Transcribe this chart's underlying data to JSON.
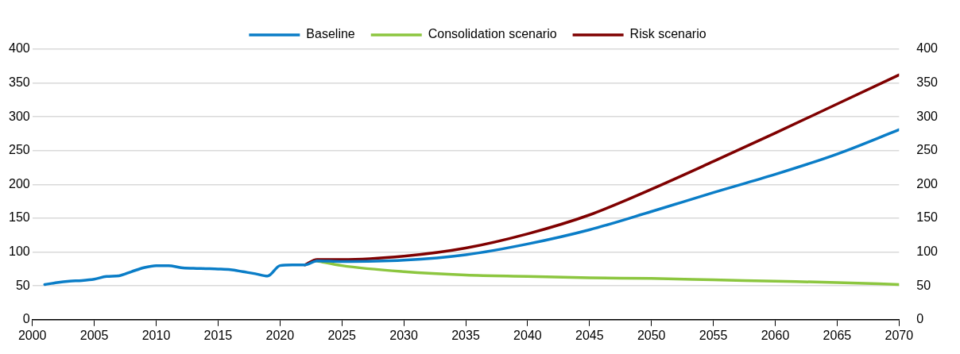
{
  "chart_data": {
    "type": "line",
    "xlim": [
      2000,
      2070
    ],
    "xticks": [
      2000,
      2005,
      2010,
      2015,
      2020,
      2025,
      2030,
      2035,
      2040,
      2045,
      2050,
      2055,
      2060,
      2065,
      2070
    ],
    "ylim": [
      0,
      400
    ],
    "yticks": [
      0,
      50,
      100,
      150,
      200,
      250,
      300,
      350,
      400
    ],
    "y2lim": [
      0,
      400
    ],
    "y2ticks": [
      0,
      50,
      100,
      150,
      200,
      250,
      300,
      350,
      400
    ],
    "grid": "y",
    "legend": "top",
    "marker": "none",
    "line_style": "solid",
    "series": [
      {
        "name": "Baseline",
        "color": "#0a7dc7",
        "x": [
          2001,
          2002,
          2003,
          2004,
          2005,
          2006,
          2007,
          2008,
          2009,
          2010,
          2011,
          2012,
          2013,
          2014,
          2015,
          2016,
          2017,
          2018,
          2019,
          2020,
          2021,
          2022,
          2023,
          2025,
          2030,
          2035,
          2040,
          2045,
          2050,
          2055,
          2060,
          2065,
          2070
        ],
        "values": [
          52,
          55,
          57,
          58,
          60,
          64,
          65,
          71,
          77,
          80,
          80,
          77,
          76,
          75.5,
          75,
          74,
          71,
          68,
          64.5,
          80,
          81,
          81,
          87,
          86,
          88,
          96,
          112,
          133,
          160,
          188,
          215,
          245,
          281
        ]
      },
      {
        "name": "Consolidation scenario",
        "color": "#8cc63f",
        "x": [
          2023,
          2025,
          2030,
          2035,
          2040,
          2045,
          2050,
          2055,
          2060,
          2065,
          2070
        ],
        "values": [
          87,
          80,
          71,
          66,
          64,
          62,
          61,
          59,
          57,
          55,
          52
        ]
      },
      {
        "name": "Risk scenario",
        "color": "#7f0000",
        "x": [
          2022,
          2023,
          2025,
          2030,
          2035,
          2040,
          2045,
          2050,
          2055,
          2060,
          2065,
          2070
        ],
        "values": [
          81,
          89,
          89,
          94,
          106,
          127,
          155,
          193,
          234,
          276,
          319,
          362
        ]
      }
    ]
  }
}
